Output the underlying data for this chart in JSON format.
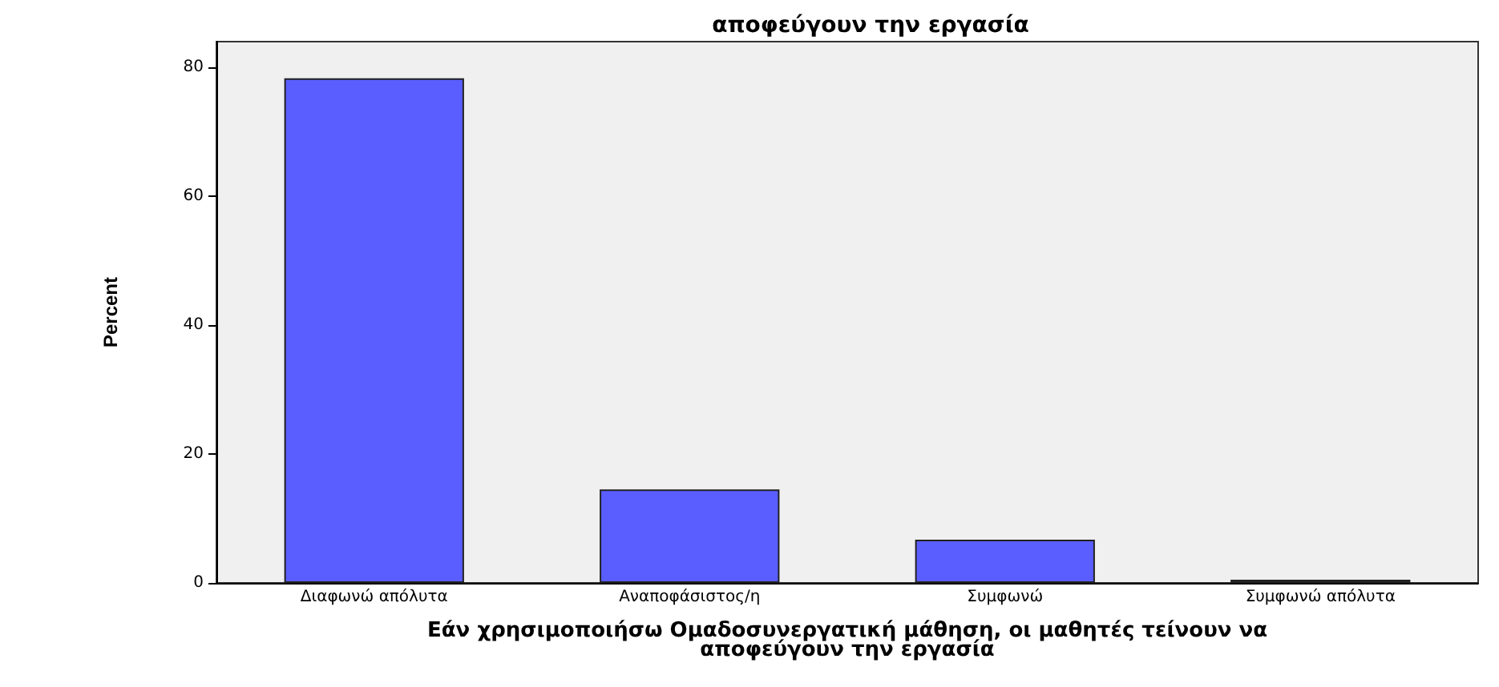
{
  "chart_data": {
    "type": "bar",
    "title": "αποφεύγουν την εργασία",
    "categories": [
      "Διαφωνώ απόλυτα",
      "Αναποφάσιστος/η",
      "Συμφωνώ",
      "Συμφωνώ απόλυτα"
    ],
    "values": [
      78.3,
      14.5,
      6.7,
      0.5
    ],
    "color": "#5b5eff",
    "xlabel": "Εάν χρησιμοποιήσω Ομαδοσυνεργατική μάθηση, οι μαθητές τείνουν να\nαποφεύγουν την εργασία",
    "ylabel": "Percent",
    "ylim": [
      0,
      84
    ],
    "yticks": [
      0,
      20,
      40,
      60,
      80
    ],
    "grid": false
  }
}
